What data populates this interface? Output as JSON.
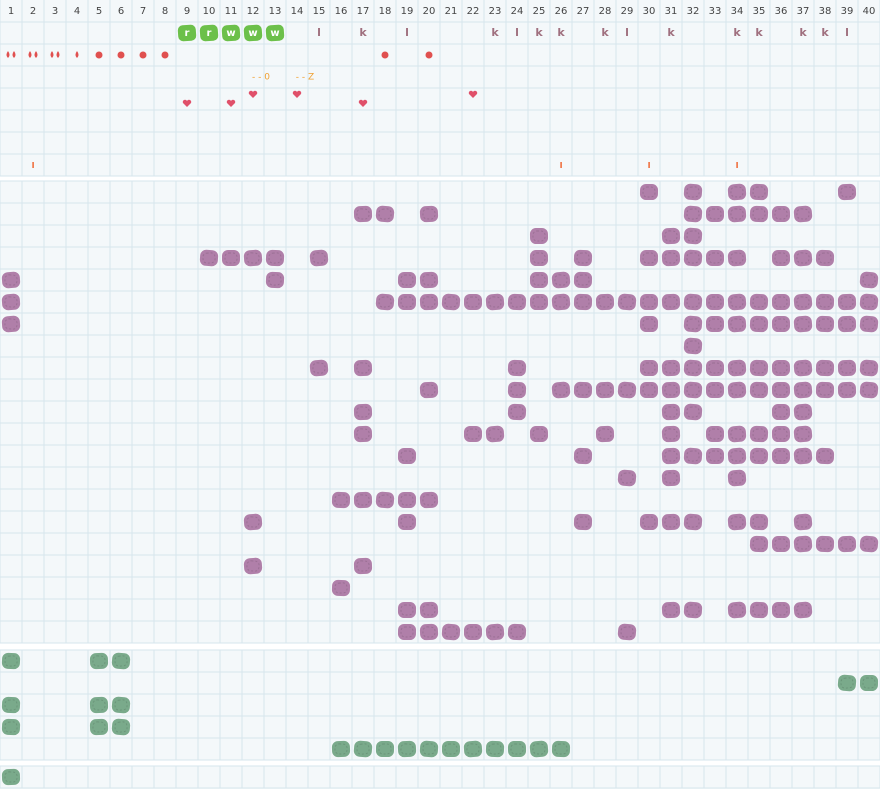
{
  "columns": [
    1,
    2,
    3,
    4,
    5,
    6,
    7,
    8,
    9,
    10,
    11,
    12,
    13,
    14,
    15,
    16,
    17,
    18,
    19,
    20,
    21,
    22,
    23,
    24,
    25,
    26,
    27,
    28,
    29,
    30,
    31,
    32,
    33,
    34,
    35,
    36,
    37,
    38,
    39,
    40
  ],
  "badges": [
    "r",
    "r",
    "w",
    "w",
    "w"
  ],
  "letters": [
    "l",
    "k",
    "l",
    "k",
    "l",
    "k",
    "k",
    "k",
    "l",
    "k",
    "k",
    "k",
    "k",
    "k",
    "l"
  ],
  "notes": [
    "- - 0",
    "- - Z"
  ]
}
